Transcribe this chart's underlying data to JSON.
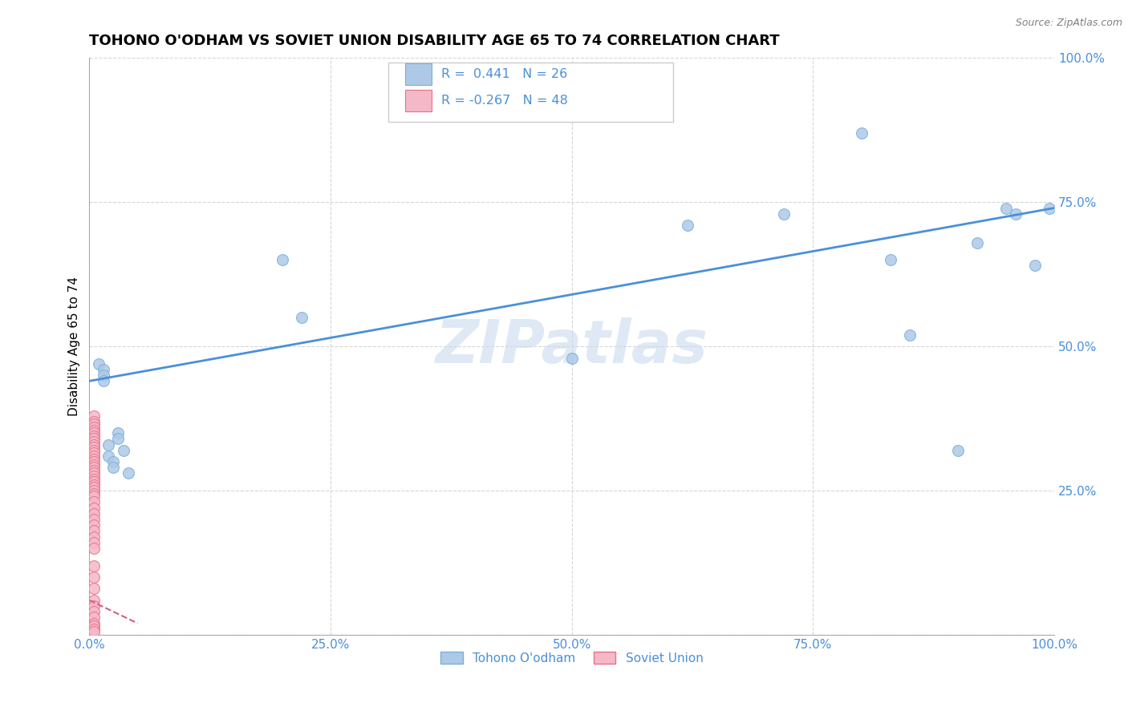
{
  "title": "TOHONO O'ODHAM VS SOVIET UNION DISABILITY AGE 65 TO 74 CORRELATION CHART",
  "source": "Source: ZipAtlas.com",
  "ylabel": "Disability Age 65 to 74",
  "watermark": "ZIPatlas",
  "blue_R": 0.441,
  "blue_N": 26,
  "pink_R": -0.267,
  "pink_N": 48,
  "blue_color": "#aec9e8",
  "pink_color": "#f5b8c8",
  "blue_edge": "#7aafd4",
  "pink_edge": "#e8708a",
  "line_color": "#4a90d9",
  "pink_line_color": "#d4607a",
  "blue_x": [
    1.0,
    1.5,
    1.5,
    1.5,
    2.0,
    2.0,
    2.5,
    2.5,
    3.0,
    3.0,
    3.5,
    4.0,
    20.0,
    22.0,
    50.0,
    62.0,
    72.0,
    80.0,
    83.0,
    85.0,
    90.0,
    92.0,
    95.0,
    96.0,
    98.0,
    99.5
  ],
  "blue_y": [
    47.0,
    46.0,
    45.0,
    44.0,
    33.0,
    31.0,
    30.0,
    29.0,
    35.0,
    34.0,
    32.0,
    28.0,
    65.0,
    55.0,
    48.0,
    71.0,
    73.0,
    87.0,
    65.0,
    52.0,
    32.0,
    68.0,
    74.0,
    73.0,
    64.0,
    74.0
  ],
  "pink_x": [
    0.5,
    0.5,
    0.5,
    0.5,
    0.5,
    0.5,
    0.5,
    0.5,
    0.5,
    0.5,
    0.5,
    0.5,
    0.5,
    0.5,
    0.5,
    0.5,
    0.5,
    0.5,
    0.5,
    0.5,
    0.5,
    0.5,
    0.5,
    0.5,
    0.5,
    0.5,
    0.5,
    0.5,
    0.5,
    0.5,
    0.5,
    0.5,
    0.5,
    0.5,
    0.5,
    0.5,
    0.5,
    0.5,
    0.5,
    0.5,
    0.5,
    0.5,
    0.5,
    0.5,
    0.5,
    0.5,
    0.5,
    0.5
  ],
  "pink_y": [
    38.0,
    37.0,
    36.5,
    36.0,
    35.5,
    35.0,
    34.5,
    34.0,
    33.5,
    33.0,
    32.5,
    32.0,
    31.5,
    31.0,
    30.5,
    30.0,
    29.5,
    29.0,
    28.5,
    28.0,
    27.5,
    27.0,
    26.5,
    26.0,
    25.5,
    25.0,
    24.5,
    24.0,
    23.0,
    22.0,
    21.0,
    20.0,
    19.0,
    18.0,
    17.0,
    16.0,
    15.0,
    12.0,
    10.0,
    8.0,
    6.0,
    5.0,
    4.0,
    3.0,
    2.0,
    1.5,
    1.0,
    0.5
  ],
  "blue_line_x0": 0.0,
  "blue_line_y0": 44.0,
  "blue_line_x1": 100.0,
  "blue_line_y1": 74.0,
  "pink_line_x0": 0.0,
  "pink_line_y0": 6.0,
  "pink_line_x1": 5.0,
  "pink_line_y1": 2.0,
  "xmin": 0.0,
  "xmax": 100.0,
  "ymin": 0.0,
  "ymax": 100.0,
  "xticks": [
    0.0,
    25.0,
    50.0,
    75.0,
    100.0
  ],
  "yticks": [
    0.0,
    25.0,
    50.0,
    75.0,
    100.0
  ],
  "xtick_labels": [
    "0.0%",
    "25.0%",
    "50.0%",
    "75.0%",
    "100.0%"
  ],
  "ytick_labels": [
    "",
    "25.0%",
    "50.0%",
    "75.0%",
    "100.0%"
  ],
  "legend_label_blue": "Tohono O'odham",
  "legend_label_pink": "Soviet Union",
  "title_fontsize": 13,
  "axis_label_fontsize": 11,
  "tick_fontsize": 11,
  "marker_size": 100,
  "background_color": "#ffffff",
  "grid_color": "#cccccc"
}
